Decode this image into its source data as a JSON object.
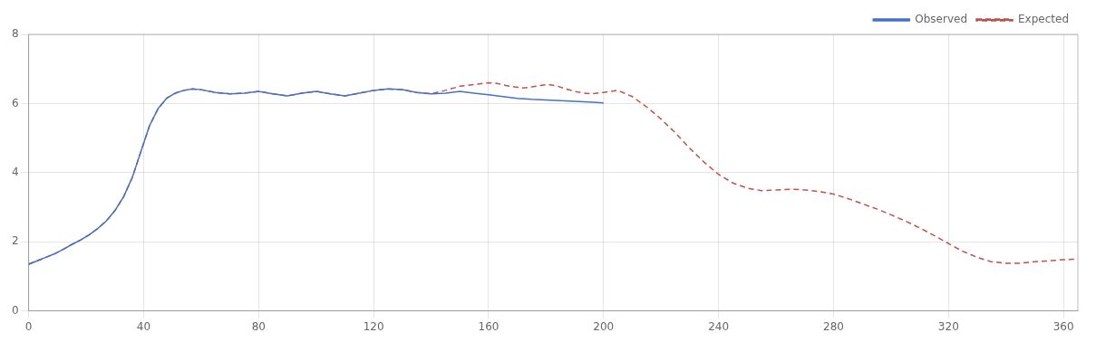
{
  "chart_data": {
    "type": "line",
    "series": [
      {
        "name": "Observed",
        "color": "#4472c4",
        "line_style": "solid",
        "x": [
          0,
          3,
          6,
          9,
          12,
          15,
          18,
          21,
          24,
          27,
          30,
          33,
          36,
          39,
          42,
          45,
          48,
          51,
          54,
          57,
          60,
          65,
          70,
          75,
          80,
          85,
          90,
          95,
          100,
          105,
          110,
          115,
          120,
          125,
          130,
          135,
          140,
          145,
          150,
          155,
          160,
          165,
          170,
          175,
          180,
          185,
          190,
          195,
          200
        ],
        "values": [
          1.35,
          1.45,
          1.55,
          1.65,
          1.78,
          1.92,
          2.05,
          2.2,
          2.38,
          2.6,
          2.9,
          3.3,
          3.85,
          4.6,
          5.35,
          5.85,
          6.15,
          6.3,
          6.38,
          6.42,
          6.4,
          6.32,
          6.28,
          6.3,
          6.35,
          6.28,
          6.22,
          6.3,
          6.35,
          6.28,
          6.22,
          6.3,
          6.38,
          6.42,
          6.4,
          6.32,
          6.28,
          6.3,
          6.35,
          6.3,
          6.25,
          6.2,
          6.15,
          6.12,
          6.1,
          6.08,
          6.06,
          6.04,
          6.02
        ]
      },
      {
        "name": "Expected",
        "color": "#c0504d",
        "line_style": "dashed",
        "x": [
          0,
          3,
          6,
          9,
          12,
          15,
          18,
          21,
          24,
          27,
          30,
          33,
          36,
          39,
          42,
          45,
          48,
          51,
          54,
          57,
          60,
          65,
          70,
          75,
          80,
          85,
          90,
          95,
          100,
          105,
          110,
          115,
          120,
          125,
          130,
          135,
          140,
          145,
          150,
          155,
          160,
          163,
          166,
          169,
          172,
          175,
          178,
          181,
          184,
          187,
          190,
          193,
          196,
          200,
          205,
          210,
          215,
          220,
          225,
          230,
          235,
          240,
          245,
          250,
          255,
          260,
          265,
          270,
          275,
          280,
          285,
          290,
          295,
          300,
          305,
          310,
          315,
          320,
          325,
          330,
          335,
          340,
          345,
          350,
          355,
          360,
          365
        ],
        "values": [
          1.35,
          1.45,
          1.55,
          1.65,
          1.78,
          1.92,
          2.05,
          2.2,
          2.38,
          2.6,
          2.9,
          3.3,
          3.85,
          4.6,
          5.35,
          5.85,
          6.15,
          6.3,
          6.38,
          6.42,
          6.4,
          6.32,
          6.28,
          6.3,
          6.35,
          6.28,
          6.22,
          6.3,
          6.35,
          6.28,
          6.22,
          6.3,
          6.38,
          6.42,
          6.4,
          6.32,
          6.28,
          6.38,
          6.5,
          6.55,
          6.6,
          6.58,
          6.52,
          6.48,
          6.45,
          6.48,
          6.52,
          6.55,
          6.5,
          6.42,
          6.35,
          6.3,
          6.28,
          6.32,
          6.38,
          6.2,
          5.9,
          5.55,
          5.15,
          4.7,
          4.3,
          3.95,
          3.7,
          3.55,
          3.48,
          3.5,
          3.52,
          3.5,
          3.45,
          3.38,
          3.25,
          3.1,
          2.95,
          2.78,
          2.6,
          2.4,
          2.18,
          1.95,
          1.72,
          1.55,
          1.42,
          1.38,
          1.38,
          1.42,
          1.45,
          1.48,
          1.5
        ]
      }
    ],
    "xlim": [
      0,
      365
    ],
    "xticks": [
      0,
      40,
      80,
      120,
      160,
      200,
      240,
      280,
      320,
      360
    ],
    "ylim": [
      0,
      8
    ],
    "yticks": [
      0,
      2,
      4,
      6,
      8
    ],
    "grid": true,
    "legend": "upper right"
  }
}
